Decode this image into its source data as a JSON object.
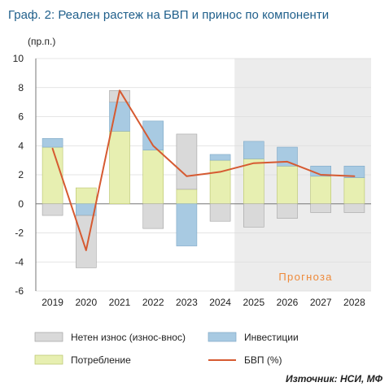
{
  "title": "Граф. 2: Реален растеж на БВП и принос по компоненти",
  "y_unit_label": "(пр.п.)",
  "forecast_label": "Прогноза",
  "source": "Източник: НСИ, МФ",
  "colors": {
    "title": "#1f5f8b",
    "net_exports": "#d9d9d9",
    "net_exports_border": "#a3a3a3",
    "investment": "#a8cae2",
    "investment_border": "#7fa8c6",
    "consumption": "#e7efb1",
    "consumption_border": "#b8c46b",
    "gdp_line": "#d65a31",
    "forecast_shade": "#ececec",
    "grid": "#dcdcdc",
    "axis": "#777777",
    "forecast_text": "#ee8a3a"
  },
  "chart_data": {
    "type": "bar",
    "stacked": true,
    "categories": [
      "2019",
      "2020",
      "2021",
      "2022",
      "2023",
      "2024",
      "2025",
      "2026",
      "2027",
      "2028"
    ],
    "yticks": [
      "10",
      "8",
      "6",
      "4",
      "2",
      "0",
      "-2",
      "-4",
      "-6"
    ],
    "ylim": [
      -6,
      10
    ],
    "grid": true,
    "forecast_start": "2025",
    "forecast_end": "2028",
    "series": [
      {
        "name": "Потребление",
        "values": [
          3.9,
          1.1,
          5.0,
          3.7,
          1.0,
          3.0,
          3.1,
          2.6,
          1.9,
          1.8
        ]
      },
      {
        "name": "Инвестиции",
        "values": [
          0.6,
          -0.8,
          2.0,
          2.0,
          -2.9,
          0.4,
          1.2,
          1.3,
          0.7,
          0.8
        ]
      },
      {
        "name": "Нетен износ (износ-внос)",
        "values": [
          -0.8,
          -3.6,
          0.8,
          -1.7,
          3.8,
          -1.2,
          -1.6,
          -1.0,
          -0.6,
          -0.6
        ]
      },
      {
        "name": "БВП (%)",
        "type": "line",
        "values": [
          3.8,
          -3.2,
          7.8,
          4.0,
          1.9,
          2.2,
          2.8,
          2.9,
          2.0,
          1.9
        ]
      }
    ],
    "legend": [
      {
        "key": "net_exports",
        "label": "Нетен износ (износ-внос)"
      },
      {
        "key": "investment",
        "label": "Инвестиции"
      },
      {
        "key": "consumption",
        "label": "Потребление"
      },
      {
        "key": "gdp",
        "label": "БВП (%)"
      }
    ],
    "legend_position": "bottom"
  }
}
